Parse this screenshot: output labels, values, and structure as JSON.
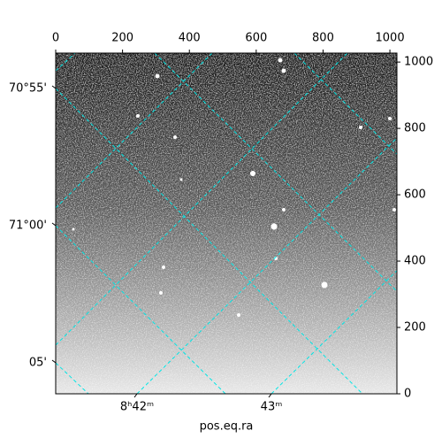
{
  "chart_data": {
    "type": "image",
    "xlabel": "pos.eq.ra",
    "xlim": [
      0,
      1021
    ],
    "xticks": [
      0,
      200,
      400,
      600,
      800,
      1000
    ],
    "ylim": [
      0,
      1027
    ],
    "yticks": [
      0,
      200,
      400,
      600,
      800,
      1000
    ],
    "ra_ticks": [
      "8ʰ42ᵐ",
      "43ᵐ"
    ],
    "dec_ticks": [
      "70°55'",
      "71°00'",
      "05'"
    ],
    "grid_color": "#00e5e5"
  }
}
